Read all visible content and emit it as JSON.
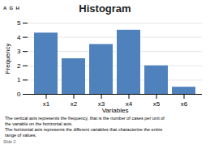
{
  "chart_data": {
    "type": "bar",
    "title": "Histogram",
    "categories": [
      "x1",
      "x2",
      "x3",
      "x4",
      "x5",
      "x6"
    ],
    "values": [
      4.3,
      2.5,
      3.5,
      4.5,
      2.0,
      0.5
    ],
    "color": "#4f81bd",
    "xlabel": "Variables",
    "ylabel": "Frequency",
    "ylim": [
      0,
      5
    ],
    "yticks": [
      0,
      1,
      2,
      3,
      4,
      5
    ],
    "grid": true,
    "annotations": [
      "A  G  H",
      "The vertical axis represents the frequency, that is the number of cases per unit of",
      "the variable on the horizontal axis.",
      "The horizontal axis represents the different variables that characterize the entire",
      "range of values.",
      "Slide 2"
    ]
  }
}
